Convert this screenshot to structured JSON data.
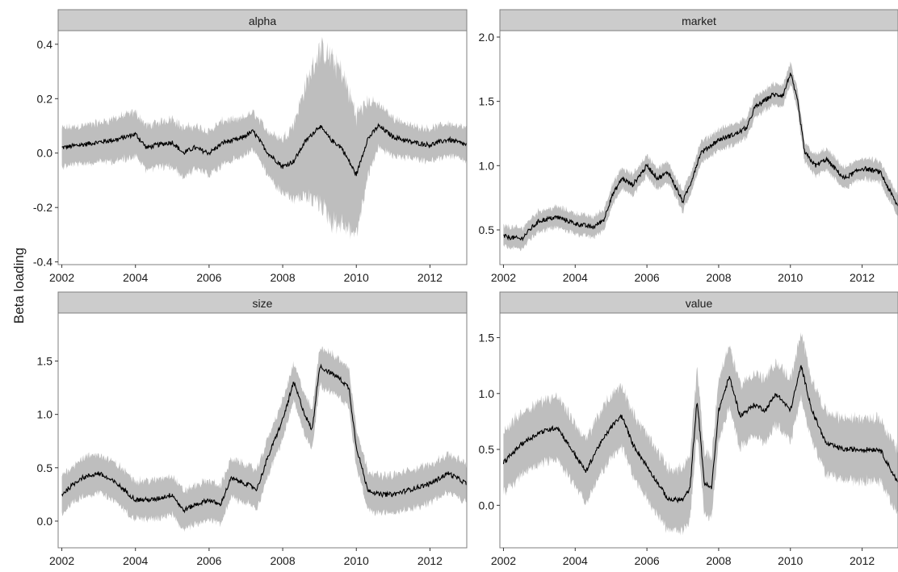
{
  "chart_data": {
    "type": "line",
    "layout": "facet-grid-2x2",
    "ylabel": "Beta loading",
    "xlabel": "",
    "band_color": "#bebebe",
    "line_color": "#000000",
    "strip_color": "#cccccc",
    "x_ticks": [
      2002,
      2004,
      2006,
      2008,
      2010,
      2012
    ],
    "xlim": [
      2001.9,
      2013.0
    ],
    "panels": [
      {
        "title": "alpha",
        "ylim": [
          -0.41,
          0.45
        ],
        "y_ticks": [
          {
            "value": 0.4,
            "label": "0.4"
          },
          {
            "value": 0.2,
            "label": "0.2"
          },
          {
            "value": 0.0,
            "label": "0.0"
          },
          {
            "value": -0.2,
            "label": "-0.2"
          },
          {
            "value": -0.4,
            "label": "-0.4"
          }
        ],
        "series": {
          "x": [
            2002.0,
            2002.5,
            2003.0,
            2003.5,
            2004.0,
            2004.3,
            2004.6,
            2005.0,
            2005.3,
            2005.6,
            2006.0,
            2006.4,
            2006.8,
            2007.2,
            2007.6,
            2008.0,
            2008.3,
            2008.6,
            2009.0,
            2009.3,
            2009.6,
            2010.0,
            2010.3,
            2010.6,
            2011.0,
            2011.5,
            2012.0,
            2012.5,
            2013.0
          ],
          "y": [
            0.02,
            0.03,
            0.04,
            0.05,
            0.07,
            0.02,
            0.03,
            0.04,
            0.0,
            0.02,
            0.0,
            0.04,
            0.05,
            0.08,
            0.0,
            -0.05,
            -0.03,
            0.04,
            0.1,
            0.05,
            0.02,
            -0.08,
            0.05,
            0.1,
            0.06,
            0.04,
            0.03,
            0.05,
            0.03
          ],
          "half_width": [
            0.07,
            0.07,
            0.07,
            0.08,
            0.08,
            0.08,
            0.08,
            0.09,
            0.09,
            0.08,
            0.08,
            0.08,
            0.07,
            0.07,
            0.08,
            0.1,
            0.14,
            0.2,
            0.28,
            0.3,
            0.28,
            0.22,
            0.14,
            0.08,
            0.07,
            0.06,
            0.06,
            0.06,
            0.06
          ]
        }
      },
      {
        "title": "market",
        "ylim": [
          0.23,
          2.05
        ],
        "y_ticks": [
          {
            "value": 2.0,
            "label": "2.0"
          },
          {
            "value": 1.5,
            "label": "1.5"
          },
          {
            "value": 1.0,
            "label": "1.0"
          },
          {
            "value": 0.5,
            "label": "0.5"
          }
        ],
        "series": {
          "x": [
            2002.0,
            2002.5,
            2002.8,
            2003.0,
            2003.5,
            2004.0,
            2004.5,
            2004.8,
            2005.0,
            2005.3,
            2005.6,
            2006.0,
            2006.3,
            2006.6,
            2007.0,
            2007.2,
            2007.5,
            2008.0,
            2008.5,
            2008.8,
            2009.0,
            2009.5,
            2009.8,
            2010.0,
            2010.2,
            2010.4,
            2010.7,
            2011.0,
            2011.5,
            2012.0,
            2012.5,
            2013.0
          ],
          "y": [
            0.45,
            0.43,
            0.52,
            0.57,
            0.6,
            0.55,
            0.52,
            0.58,
            0.75,
            0.9,
            0.85,
            1.0,
            0.9,
            0.95,
            0.72,
            0.85,
            1.1,
            1.2,
            1.25,
            1.3,
            1.45,
            1.55,
            1.55,
            1.72,
            1.5,
            1.1,
            1.0,
            1.05,
            0.9,
            0.98,
            0.95,
            0.68
          ]
        },
        "band_half_width": 0.08
      },
      {
        "title": "size",
        "ylim": [
          -0.25,
          1.95
        ],
        "y_ticks": [
          {
            "value": 1.5,
            "label": "1.5"
          },
          {
            "value": 1.0,
            "label": "1.0"
          },
          {
            "value": 0.5,
            "label": "0.5"
          },
          {
            "value": 0.0,
            "label": "0.0"
          }
        ],
        "series": {
          "x": [
            2002.0,
            2002.5,
            2003.0,
            2003.5,
            2004.0,
            2004.5,
            2005.0,
            2005.3,
            2005.6,
            2006.0,
            2006.3,
            2006.6,
            2007.0,
            2007.3,
            2007.6,
            2008.0,
            2008.3,
            2008.6,
            2008.8,
            2009.0,
            2009.5,
            2009.8,
            2010.0,
            2010.3,
            2010.6,
            2011.0,
            2011.5,
            2012.0,
            2012.5,
            2013.0
          ],
          "y": [
            0.25,
            0.4,
            0.45,
            0.35,
            0.2,
            0.2,
            0.25,
            0.1,
            0.15,
            0.2,
            0.15,
            0.4,
            0.35,
            0.3,
            0.6,
            0.95,
            1.3,
            1.0,
            0.85,
            1.45,
            1.35,
            1.25,
            0.7,
            0.3,
            0.25,
            0.25,
            0.3,
            0.35,
            0.45,
            0.35
          ]
        },
        "band_half_width": 0.18
      },
      {
        "title": "value",
        "ylim": [
          -0.38,
          1.72
        ],
        "y_ticks": [
          {
            "value": 1.5,
            "label": "1.5"
          },
          {
            "value": 1.0,
            "label": "1.0"
          },
          {
            "value": 0.5,
            "label": "0.5"
          },
          {
            "value": 0.0,
            "label": "0.0"
          }
        ],
        "series": {
          "x": [
            2002.0,
            2002.5,
            2003.0,
            2003.5,
            2004.0,
            2004.3,
            2004.6,
            2005.0,
            2005.3,
            2005.6,
            2006.0,
            2006.3,
            2006.6,
            2007.0,
            2007.2,
            2007.4,
            2007.6,
            2007.8,
            2008.0,
            2008.3,
            2008.6,
            2009.0,
            2009.3,
            2009.6,
            2010.0,
            2010.3,
            2010.6,
            2011.0,
            2011.5,
            2012.0,
            2012.5,
            2013.0
          ],
          "y": [
            0.38,
            0.55,
            0.65,
            0.7,
            0.45,
            0.3,
            0.5,
            0.7,
            0.8,
            0.55,
            0.35,
            0.2,
            0.05,
            0.05,
            0.15,
            0.95,
            0.2,
            0.15,
            0.85,
            1.15,
            0.8,
            0.9,
            0.85,
            1.0,
            0.85,
            1.25,
            0.85,
            0.55,
            0.5,
            0.5,
            0.5,
            0.2
          ]
        },
        "band_half_width": 0.28
      }
    ]
  }
}
